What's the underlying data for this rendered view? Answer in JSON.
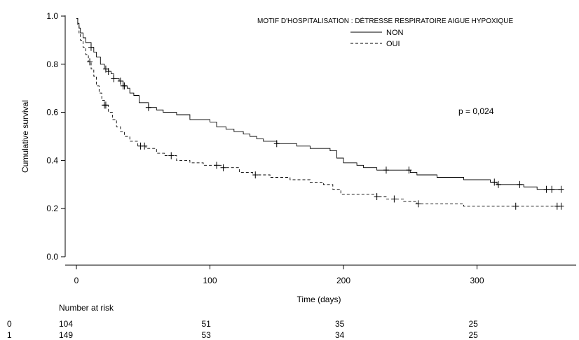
{
  "chart_data": {
    "type": "line",
    "subtype": "kaplan-meier",
    "xlabel": "Time (days)",
    "ylabel": "Cumulative survival",
    "xlim": [
      0,
      375
    ],
    "ylim": [
      0,
      1.0
    ],
    "xticks": [
      0,
      100,
      200,
      300
    ],
    "yticks": [
      0.0,
      0.2,
      0.4,
      0.6,
      0.8,
      1.0
    ],
    "x_tick_labels": [
      "0",
      "100",
      "200",
      "300"
    ],
    "y_tick_labels": [
      "0.0",
      "0.2",
      "0.4",
      "0.6",
      "0.8",
      "1.0"
    ],
    "grid": false,
    "legend": {
      "title": "MOTIF D'HOSPITALISATION : DÉTRESSE RESPIRATOIRE AIGUE HYPOXIQUE",
      "position": "top-right"
    },
    "annotation": "p = 0,024",
    "series": [
      {
        "name": "NON",
        "style": "solid",
        "steps": [
          [
            0,
            0.99
          ],
          [
            1,
            0.97
          ],
          [
            2,
            0.95
          ],
          [
            3,
            0.93
          ],
          [
            5,
            0.91
          ],
          [
            7,
            0.89
          ],
          [
            11,
            0.87
          ],
          [
            13,
            0.85
          ],
          [
            15,
            0.83
          ],
          [
            18,
            0.8
          ],
          [
            21,
            0.78
          ],
          [
            24,
            0.77
          ],
          [
            26,
            0.76
          ],
          [
            28,
            0.74
          ],
          [
            32,
            0.73
          ],
          [
            35,
            0.71
          ],
          [
            38,
            0.7
          ],
          [
            40,
            0.68
          ],
          [
            43,
            0.67
          ],
          [
            47,
            0.64
          ],
          [
            54,
            0.62
          ],
          [
            60,
            0.61
          ],
          [
            65,
            0.6
          ],
          [
            75,
            0.59
          ],
          [
            85,
            0.57
          ],
          [
            95,
            0.57
          ],
          [
            100,
            0.56
          ],
          [
            105,
            0.54
          ],
          [
            112,
            0.53
          ],
          [
            118,
            0.52
          ],
          [
            125,
            0.51
          ],
          [
            130,
            0.5
          ],
          [
            135,
            0.49
          ],
          [
            140,
            0.48
          ],
          [
            150,
            0.47
          ],
          [
            165,
            0.46
          ],
          [
            175,
            0.45
          ],
          [
            190,
            0.44
          ],
          [
            195,
            0.41
          ],
          [
            200,
            0.39
          ],
          [
            210,
            0.38
          ],
          [
            215,
            0.37
          ],
          [
            225,
            0.36
          ],
          [
            250,
            0.35
          ],
          [
            255,
            0.34
          ],
          [
            270,
            0.33
          ],
          [
            290,
            0.32
          ],
          [
            310,
            0.31
          ],
          [
            315,
            0.3
          ],
          [
            335,
            0.29
          ],
          [
            345,
            0.28
          ],
          [
            362,
            0.28
          ]
        ],
        "censor_times": [
          11,
          22,
          24,
          28,
          33,
          35,
          36,
          54,
          150,
          232,
          249,
          313,
          316,
          332,
          352,
          356,
          363
        ]
      },
      {
        "name": "OUI",
        "style": "dashed",
        "steps": [
          [
            0,
            0.99
          ],
          [
            1,
            0.96
          ],
          [
            2,
            0.93
          ],
          [
            3,
            0.9
          ],
          [
            5,
            0.87
          ],
          [
            7,
            0.84
          ],
          [
            9,
            0.81
          ],
          [
            11,
            0.78
          ],
          [
            13,
            0.75
          ],
          [
            15,
            0.71
          ],
          [
            17,
            0.68
          ],
          [
            19,
            0.65
          ],
          [
            21,
            0.63
          ],
          [
            24,
            0.6
          ],
          [
            27,
            0.57
          ],
          [
            30,
            0.54
          ],
          [
            33,
            0.52
          ],
          [
            36,
            0.5
          ],
          [
            40,
            0.48
          ],
          [
            46,
            0.46
          ],
          [
            52,
            0.45
          ],
          [
            60,
            0.43
          ],
          [
            66,
            0.42
          ],
          [
            75,
            0.4
          ],
          [
            85,
            0.39
          ],
          [
            95,
            0.38
          ],
          [
            110,
            0.37
          ],
          [
            122,
            0.35
          ],
          [
            132,
            0.34
          ],
          [
            145,
            0.33
          ],
          [
            160,
            0.32
          ],
          [
            175,
            0.31
          ],
          [
            185,
            0.3
          ],
          [
            192,
            0.28
          ],
          [
            198,
            0.26
          ],
          [
            225,
            0.25
          ],
          [
            232,
            0.24
          ],
          [
            245,
            0.23
          ],
          [
            255,
            0.22
          ],
          [
            290,
            0.21
          ],
          [
            362,
            0.21
          ]
        ],
        "censor_times": [
          10,
          21,
          22,
          48,
          51,
          71,
          105,
          110,
          134,
          225,
          238,
          256,
          329,
          360,
          363
        ]
      }
    ],
    "risk_table": {
      "title": "Number at risk",
      "times": [
        0,
        100,
        200,
        300
      ],
      "rows": [
        {
          "label": "0",
          "values": [
            "104",
            "51",
            "35",
            "25"
          ]
        },
        {
          "label": "1",
          "values": [
            "149",
            "53",
            "34",
            "25"
          ]
        }
      ]
    }
  }
}
